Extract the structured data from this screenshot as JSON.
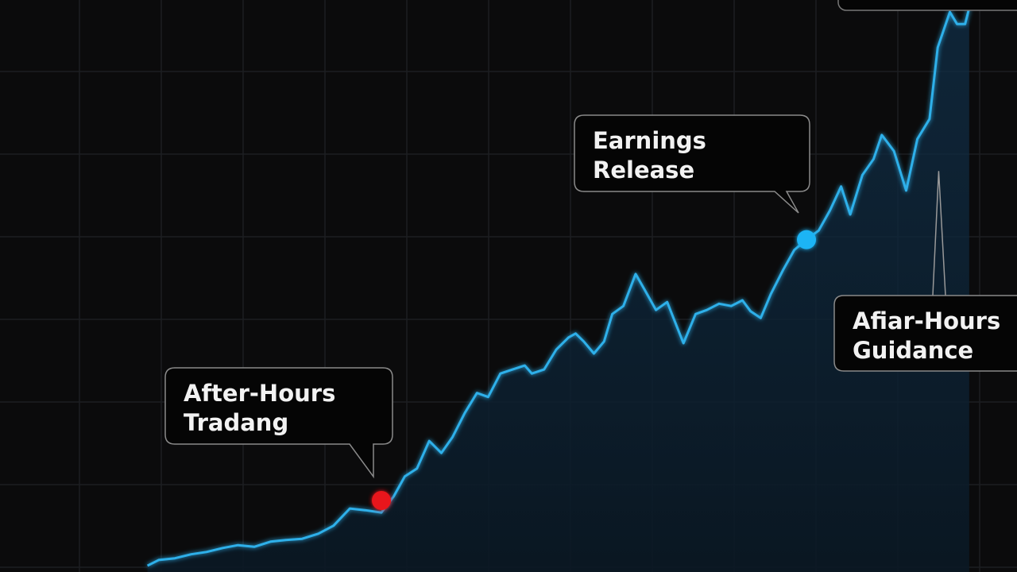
{
  "chart_data": {
    "type": "line",
    "color": "#2fb0ea",
    "grid": true,
    "xlim": [
      0,
      100
    ],
    "ylim": [
      0,
      100
    ],
    "x": [
      14.5,
      15.6,
      17.2,
      18.8,
      20.3,
      21.9,
      23.4,
      25.0,
      26.6,
      28.1,
      29.7,
      31.3,
      32.8,
      34.4,
      35.9,
      37.5,
      38.7,
      39.8,
      41.0,
      42.2,
      43.4,
      44.5,
      45.7,
      46.9,
      48.0,
      49.2,
      50.4,
      51.6,
      52.3,
      53.5,
      54.7,
      55.9,
      56.6,
      57.4,
      58.4,
      59.4,
      60.2,
      61.3,
      62.5,
      63.4,
      64.5,
      65.6,
      67.2,
      68.4,
      69.5,
      70.7,
      71.9,
      73.0,
      73.8,
      74.8,
      75.8,
      77.0,
      78.1,
      79.3,
      80.5,
      81.6,
      82.7,
      83.6,
      84.8,
      85.9,
      86.7,
      87.9,
      89.1,
      90.2,
      91.4,
      92.2,
      93.4,
      94.1,
      94.9,
      95.3
    ],
    "values": [
      1.1,
      2.1,
      2.4,
      3.1,
      3.5,
      4.2,
      4.7,
      4.4,
      5.3,
      5.6,
      5.8,
      6.7,
      8.1,
      11.1,
      10.8,
      10.4,
      13.2,
      16.7,
      18.1,
      22.9,
      20.8,
      23.6,
      27.8,
      31.3,
      30.6,
      34.7,
      35.4,
      36.1,
      34.7,
      35.4,
      38.9,
      41.0,
      41.7,
      40.3,
      38.2,
      40.3,
      45.1,
      46.5,
      52.1,
      49.3,
      45.8,
      47.2,
      40.0,
      45.1,
      45.8,
      46.9,
      46.5,
      47.5,
      45.6,
      44.4,
      48.6,
      52.8,
      56.3,
      58.1,
      59.7,
      63.2,
      67.4,
      62.5,
      69.4,
      72.2,
      76.4,
      73.6,
      66.7,
      75.7,
      79.2,
      91.7,
      97.9,
      95.8,
      95.8,
      98.6
    ],
    "annotations": [
      {
        "lines": [
          "After-Hours",
          "Tradang"
        ],
        "x": 37.5,
        "y": 12.5,
        "marker_color": "#e8131b"
      },
      {
        "lines": [
          "Earnings",
          "Release"
        ],
        "x": 79.3,
        "y": 58.1,
        "marker_color": "#1fb4f5"
      },
      {
        "lines": [
          "Afiar-Hours",
          "Guidance"
        ],
        "x": 92.3,
        "y": 70.1
      }
    ]
  }
}
